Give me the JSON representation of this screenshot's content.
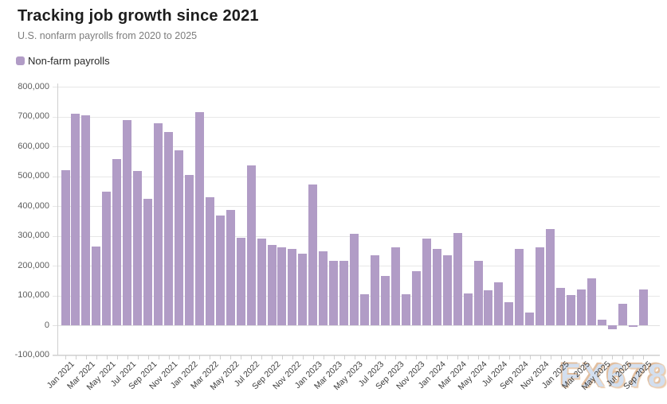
{
  "header": {
    "title": "Tracking job growth since 2021",
    "subtitle": "U.S. nonfarm payrolls from 2020 to 2025"
  },
  "legend": {
    "label": "Non-farm payrolls",
    "swatch_color": "#b19cc6"
  },
  "watermark": {
    "text": "FX678"
  },
  "chart_data": {
    "type": "bar",
    "title": "Tracking job growth since 2021",
    "subtitle": "U.S. nonfarm payrolls from 2020 to 2025",
    "series_name": "Non-farm payrolls",
    "bar_color": "#b19cc6",
    "grid": "horizontal",
    "legend_position": "top-left",
    "ylim": [
      -100000,
      800000
    ],
    "ytick_interval": 100000,
    "ytick_labels": [
      "800,000",
      "700,000",
      "600,000",
      "500,000",
      "400,000",
      "300,000",
      "200,000",
      "100,000",
      "0",
      "-100,000"
    ],
    "xtick_label_step": 2,
    "categories": [
      "Jan 2021",
      "Feb 2021",
      "Mar 2021",
      "Apr 2021",
      "May 2021",
      "Jun 2021",
      "Jul 2021",
      "Aug 2021",
      "Sep 2021",
      "Oct 2021",
      "Nov 2021",
      "Dec 2021",
      "Jan 2022",
      "Feb 2022",
      "Mar 2022",
      "Apr 2022",
      "May 2022",
      "Jun 2022",
      "Jul 2022",
      "Aug 2022",
      "Sep 2022",
      "Oct 2022",
      "Nov 2022",
      "Dec 2022",
      "Jan 2023",
      "Feb 2023",
      "Mar 2023",
      "Apr 2023",
      "May 2023",
      "Jun 2023",
      "Jul 2023",
      "Aug 2023",
      "Sep 2023",
      "Oct 2023",
      "Nov 2023",
      "Dec 2023",
      "Jan 2024",
      "Feb 2024",
      "Mar 2024",
      "Apr 2024",
      "May 2024",
      "Jun 2024",
      "Jul 2024",
      "Aug 2024",
      "Sep 2024",
      "Oct 2024",
      "Nov 2024",
      "Dec 2024",
      "Jan 2025",
      "Feb 2025",
      "Mar 2025",
      "Apr 2025",
      "May 2025",
      "Jun 2025",
      "Jul 2025",
      "Aug 2025",
      "Sep 2025"
    ],
    "values": [
      520000,
      710000,
      704000,
      263000,
      447000,
      557000,
      689000,
      517000,
      424000,
      677000,
      647000,
      588000,
      504000,
      714000,
      429000,
      368000,
      386000,
      293000,
      537000,
      292000,
      269000,
      261000,
      256000,
      239000,
      472000,
      248000,
      217000,
      217000,
      306000,
      105000,
      236000,
      165000,
      262000,
      105000,
      182000,
      290000,
      256000,
      236000,
      310000,
      108000,
      216000,
      118000,
      144000,
      78000,
      255000,
      44000,
      261000,
      323000,
      125000,
      102000,
      120000,
      158000,
      19000,
      -13000,
      72000,
      -4000,
      119000
    ]
  }
}
